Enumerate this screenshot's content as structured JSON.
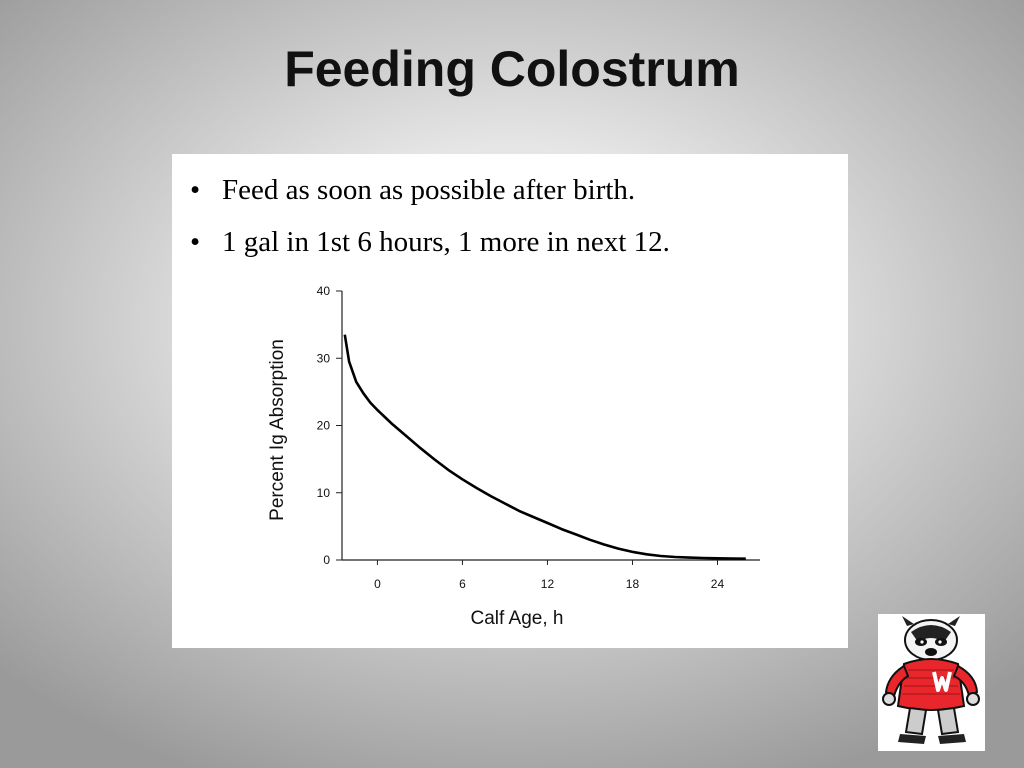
{
  "slide": {
    "title": "Feeding Colostrum"
  },
  "bullets": [
    {
      "marker": "•",
      "text": "Feed as soon as possible after birth."
    },
    {
      "marker": "•",
      "text": "1 gal in 1st 6 hours, 1 more in next 12."
    }
  ],
  "chart_data": {
    "type": "line",
    "xlabel": "Calf Age, h",
    "ylabel": "Percent Ig Absorption",
    "x_ticks": [
      0,
      6,
      12,
      18,
      24
    ],
    "y_ticks": [
      0,
      10,
      20,
      30,
      40
    ],
    "xlim": [
      -2.5,
      27
    ],
    "ylim": [
      0,
      40
    ],
    "grid": false,
    "series": [
      {
        "color": "#000000",
        "points": [
          [
            -2.3,
            33.5
          ],
          [
            -2.0,
            29.5
          ],
          [
            -1.5,
            26.5
          ],
          [
            -1.0,
            24.8
          ],
          [
            -0.5,
            23.4
          ],
          [
            0,
            22.3
          ],
          [
            1,
            20.3
          ],
          [
            2,
            18.5
          ],
          [
            3,
            16.7
          ],
          [
            4,
            15.0
          ],
          [
            5,
            13.4
          ],
          [
            6,
            12.0
          ],
          [
            7,
            10.7
          ],
          [
            8,
            9.5
          ],
          [
            9,
            8.4
          ],
          [
            10,
            7.3
          ],
          [
            11,
            6.4
          ],
          [
            12,
            5.5
          ],
          [
            13,
            4.6
          ],
          [
            14,
            3.8
          ],
          [
            15,
            3.0
          ],
          [
            16,
            2.3
          ],
          [
            17,
            1.7
          ],
          [
            18,
            1.2
          ],
          [
            19,
            0.85
          ],
          [
            20,
            0.6
          ],
          [
            21,
            0.45
          ],
          [
            22,
            0.35
          ],
          [
            23,
            0.3
          ],
          [
            24,
            0.25
          ],
          [
            25,
            0.22
          ],
          [
            26,
            0.2
          ]
        ]
      }
    ]
  },
  "mascot": {
    "name": "badger-mascot-icon"
  }
}
